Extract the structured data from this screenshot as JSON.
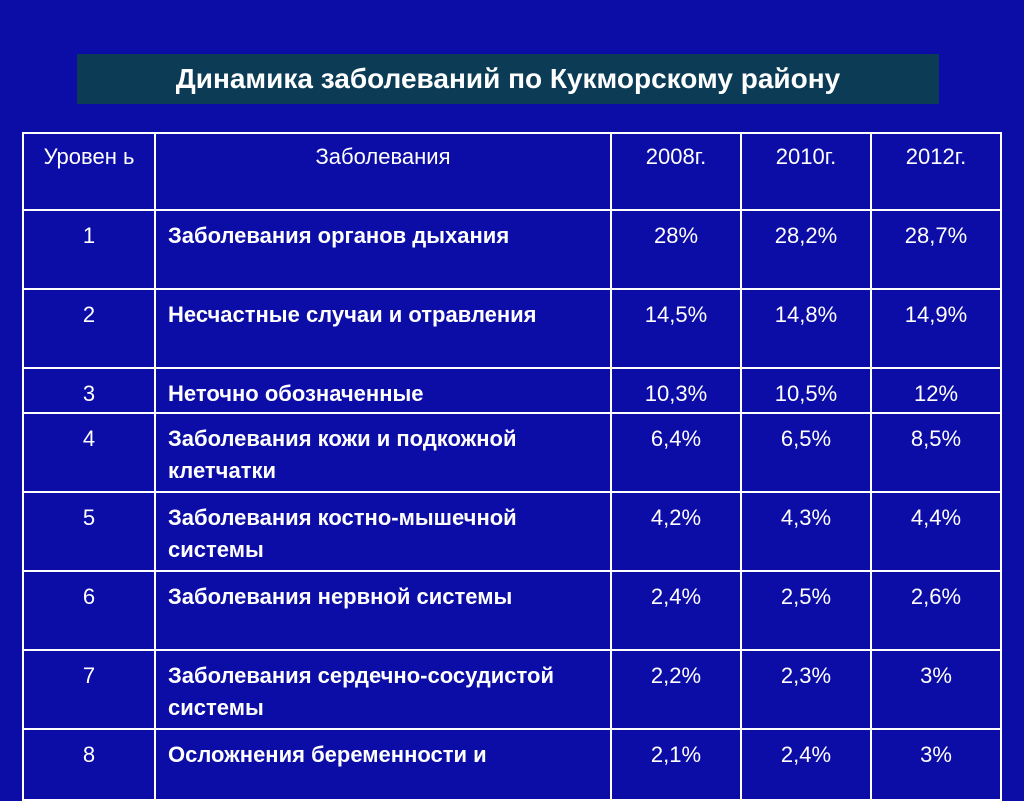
{
  "slide": {
    "title": "Динамика заболеваний по Кукморскому району"
  },
  "table": {
    "headers": {
      "level": "Уровен ь",
      "disease": "Заболевания",
      "y2008": "2008г.",
      "y2010": "2010г.",
      "y2012": "2012г."
    },
    "rows": [
      {
        "level": "1",
        "disease": "Заболевания органов дыхания",
        "y2008": "28%",
        "y2010": "28,2%",
        "y2012": "28,7%"
      },
      {
        "level": "2",
        "disease": "Несчастные случаи и отравления",
        "y2008": "14,5%",
        "y2010": "14,8%",
        "y2012": "14,9%"
      },
      {
        "level": "3",
        "disease": "Неточно обозначенные",
        "y2008": "10,3%",
        "y2010": "10,5%",
        "y2012": "12%"
      },
      {
        "level": "4",
        "disease": "Заболевания кожи и подкожной клетчатки",
        "y2008": "6,4%",
        "y2010": "6,5%",
        "y2012": "8,5%"
      },
      {
        "level": "5",
        "disease": "Заболевания костно-мышечной системы",
        "y2008": "4,2%",
        "y2010": "4,3%",
        "y2012": "4,4%"
      },
      {
        "level": "6",
        "disease": "Заболевания нервной системы",
        "y2008": "2,4%",
        "y2010": "2,5%",
        "y2012": "2,6%"
      },
      {
        "level": "7",
        "disease": "Заболевания сердечно-сосудистой системы",
        "y2008": "2,2%",
        "y2010": "2,3%",
        "y2012": "3%"
      },
      {
        "level": "8",
        "disease": "Осложнения беременности и",
        "y2008": "2,1%",
        "y2010": "2,4%",
        "y2012": "3%"
      }
    ]
  },
  "colors": {
    "background": "#0c0ca6",
    "title_bar": "#0c3b55",
    "text": "#ffffff",
    "grid": "#ffffff"
  }
}
